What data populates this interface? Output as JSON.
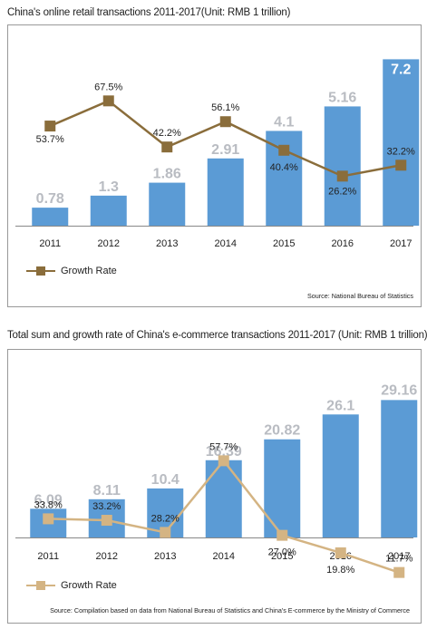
{
  "charts": [
    {
      "title": "China's online retail transactions 2011-2017(Unit: RMB 1 trillion)",
      "legend": "Growth Rate",
      "source": "Source: National Bureau of Statistics"
    },
    {
      "title": "Total sum and growth rate of China's e-commerce transactions 2011-2017 (Unit: RMB 1 trillion)",
      "legend": "Growth Rate",
      "source": "Source: Compilation based on data from National Bureau of Statistics and China's E-commerce by the Ministry of Commerce"
    }
  ],
  "chart_data": [
    {
      "type": "bar",
      "title": "China's online retail transactions 2011-2017(Unit: RMB 1 trillion)",
      "categories": [
        "2011",
        "2012",
        "2013",
        "2014",
        "2015",
        "2016",
        "2017"
      ],
      "series": [
        {
          "values": [
            0.78,
            1.3,
            1.86,
            2.91,
            4.1,
            5.16,
            7.2
          ],
          "labels": [
            "0.78",
            "1.3",
            "1.86",
            "2.91",
            "4.1",
            "5.16",
            "7.2"
          ],
          "color": "#5b9bd5"
        },
        {
          "name": "Growth Rate",
          "type": "line",
          "values": [
            53.7,
            67.5,
            42.2,
            56.1,
            40.4,
            26.2,
            32.2
          ],
          "labels": [
            "53.7%",
            "67.5%",
            "42.2%",
            "56.1%",
            "40.4%",
            "26.2%",
            "32.2%"
          ],
          "color": "#8a6d3b"
        }
      ],
      "legend_position": "bottom-left",
      "grid": false
    },
    {
      "type": "bar",
      "title": "Total sum and growth rate of China's e-commerce transactions 2011-2017 (Unit: RMB 1 trillion)",
      "categories": [
        "2011",
        "2012",
        "2013",
        "2014",
        "2015",
        "2016",
        "2017"
      ],
      "series": [
        {
          "values": [
            6.09,
            8.11,
            10.4,
            16.39,
            20.82,
            26.1,
            29.16
          ],
          "labels": [
            "6.09",
            "8.11",
            "10.4",
            "16.39",
            "20.82",
            "26.1",
            "29.16"
          ],
          "color": "#5b9bd5"
        },
        {
          "name": "Growth Rate",
          "type": "line",
          "values": [
            33.8,
            33.2,
            28.2,
            57.7,
            27.0,
            19.8,
            11.7
          ],
          "labels": [
            "33.8%",
            "33.2%",
            "28.2%",
            "57.7%",
            "27.0%",
            "19.8%",
            "11.7%"
          ],
          "color": "#d4b483"
        }
      ],
      "legend_position": "bottom-left",
      "grid": false
    }
  ]
}
